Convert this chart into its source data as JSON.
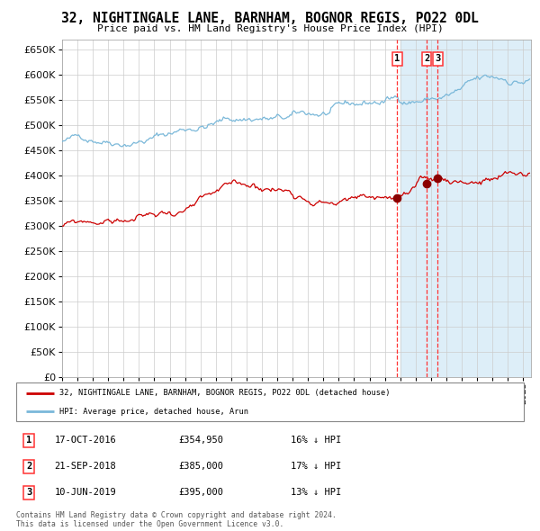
{
  "title": "32, NIGHTINGALE LANE, BARNHAM, BOGNOR REGIS, PO22 0DL",
  "subtitle": "Price paid vs. HM Land Registry's House Price Index (HPI)",
  "hpi_color": "#7ab8d9",
  "price_color": "#cc0000",
  "marker_color": "#8b0000",
  "vline_color": "#ff3333",
  "background_plot_color": "#ddeef8",
  "background_fig_color": "#ffffff",
  "grid_color": "#cccccc",
  "ylim": [
    0,
    670000
  ],
  "yticks": [
    0,
    50000,
    100000,
    150000,
    200000,
    250000,
    300000,
    350000,
    400000,
    450000,
    500000,
    550000,
    600000,
    650000
  ],
  "xlim_start": 1995.0,
  "xlim_end": 2025.5,
  "highlight_start": 2017.0,
  "sale_date_floats": [
    2016.792,
    2018.722,
    2019.441
  ],
  "sale_prices": [
    354950,
    385000,
    395000
  ],
  "sale_labels": [
    "1",
    "2",
    "3"
  ],
  "legend_label_red": "32, NIGHTINGALE LANE, BARNHAM, BOGNOR REGIS, PO22 0DL (detached house)",
  "legend_label_blue": "HPI: Average price, detached house, Arun",
  "table_entries": [
    {
      "num": "1",
      "date": "17-OCT-2016",
      "price": "£354,950",
      "pct": "16% ↓ HPI"
    },
    {
      "num": "2",
      "date": "21-SEP-2018",
      "price": "£385,000",
      "pct": "17% ↓ HPI"
    },
    {
      "num": "3",
      "date": "10-JUN-2019",
      "price": "£395,000",
      "pct": "13% ↓ HPI"
    }
  ],
  "footnote_line1": "Contains HM Land Registry data © Crown copyright and database right 2024.",
  "footnote_line2": "This data is licensed under the Open Government Licence v3.0."
}
